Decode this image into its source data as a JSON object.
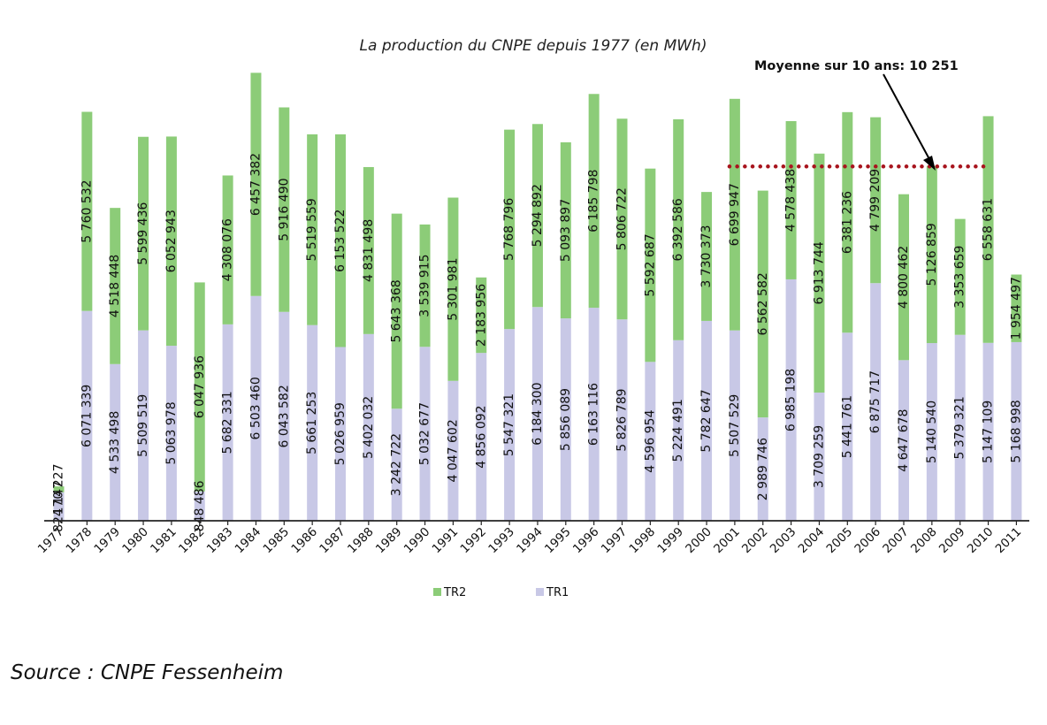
{
  "chart_data": {
    "type": "bar",
    "stacked": true,
    "title": "La production du CNPE depuis 1977 (en MWh)",
    "categories": [
      "1977",
      "1978",
      "1979",
      "1980",
      "1981",
      "1982",
      "1983",
      "1984",
      "1985",
      "1986",
      "1987",
      "1988",
      "1989",
      "1990",
      "1991",
      "1992",
      "1993",
      "1994",
      "1995",
      "1996",
      "1997",
      "1998",
      "1999",
      "2000",
      "2001",
      "2002",
      "2003",
      "2004",
      "2005",
      "2006",
      "2007",
      "2008",
      "2009",
      "2010",
      "2011"
    ],
    "series": [
      {
        "name": "TR1",
        "color": "#c8c8e6",
        "values": [
          824147,
          6071339,
          4533498,
          5509519,
          5063978,
          848486,
          5682331,
          6503460,
          6043582,
          5661253,
          5026959,
          5402032,
          3242722,
          5032677,
          4047602,
          4856092,
          5547321,
          6184300,
          5856089,
          6163116,
          5826789,
          4596954,
          5224491,
          5782647,
          5507529,
          2989746,
          6985198,
          3709259,
          5441761,
          6875717,
          4647678,
          5140540,
          5379321,
          5147109,
          5168998
        ],
        "labels": [
          "824 147",
          "6 071 339",
          "4 533 498",
          "5 509 519",
          "5 063 978",
          "848 486",
          "5 682 331",
          "6 503 460",
          "6 043 582",
          "5 661 253",
          "5 026 959",
          "5 402 032",
          "3 242 722",
          "5 032 677",
          "4 047 602",
          "4 856 092",
          "5 547 321",
          "6 184 300",
          "5 856 089",
          "6 163 116",
          "5 826 789",
          "4 596 954",
          "5 224 491",
          "5 782 647",
          "5 507 529",
          "2 989 746",
          "6 985 198",
          "3 709 259",
          "5 441 761",
          "6 875 717",
          "4 647 678",
          "5 140 540",
          "5 379 321",
          "5 147 109",
          "5 168 998"
        ]
      },
      {
        "name": "TR2",
        "color": "#8ccc78",
        "values": [
          170227,
          5760532,
          4518448,
          5599436,
          6052943,
          6047936,
          4308076,
          6457382,
          5916490,
          5519559,
          6153522,
          4831498,
          5643368,
          3539915,
          5301981,
          2183956,
          5768796,
          5294892,
          5093897,
          6185798,
          5806722,
          5592687,
          6392586,
          3730373,
          6699947,
          6562582,
          4578438,
          6913744,
          6381236,
          4799209,
          4800462,
          5126859,
          3353659,
          6558631,
          1954497
        ],
        "labels": [
          "170 227",
          "5 760 532",
          "4 518 448",
          "5 599 436",
          "6 052 943",
          "6 047 936",
          "4 308 076",
          "6 457 382",
          "5 916 490",
          "5 519 559",
          "6 153 522",
          "4 831 498",
          "5 643 368",
          "3 539 915",
          "5 301 981",
          "2 183 956",
          "5 768 796",
          "5 294 892",
          "5 093 897",
          "6 185 798",
          "5 806 722",
          "5 592 687",
          "6 392 586",
          "3 730 373",
          "6 699 947",
          "6 562 582",
          "4 578 438",
          "6 913 744",
          "6 381 236",
          "4 799 209",
          "4 800 462",
          "5 126 859",
          "3 353 659",
          "6 558 631",
          "1 954 497"
        ]
      }
    ],
    "average": {
      "label": "Moyenne sur 10 ans: 10 251",
      "value": 10251000,
      "start_category": "2001",
      "end_category": "2011",
      "color": "#a8151e"
    },
    "ylim": [
      0,
      13200000
    ],
    "legend_position": "bottom",
    "grid": false
  },
  "source": "Source : CNPE Fessenheim"
}
